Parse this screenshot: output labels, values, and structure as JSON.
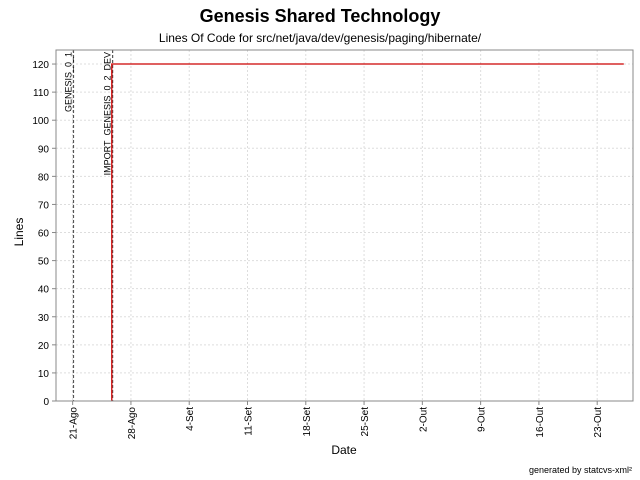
{
  "chart_data": {
    "type": "line",
    "title": "Genesis Shared Technology",
    "subtitle": "Lines Of Code for src/net/java/dev/genesis/paging/hibernate/",
    "xlabel": "Date",
    "ylabel": "Lines",
    "ylim": [
      0,
      125
    ],
    "yticks": [
      0,
      10,
      20,
      30,
      40,
      50,
      60,
      70,
      80,
      90,
      100,
      110,
      120
    ],
    "xlim_days": [
      -2.0,
      67.3
    ],
    "xticks": [
      {
        "label": "21-Ago",
        "day": 0
      },
      {
        "label": "28-Ago",
        "day": 7
      },
      {
        "label": "4-Set",
        "day": 14
      },
      {
        "label": "11-Set",
        "day": 21
      },
      {
        "label": "18-Set",
        "day": 28
      },
      {
        "label": "25-Set",
        "day": 35
      },
      {
        "label": "2-Out",
        "day": 42
      },
      {
        "label": "9-Out",
        "day": 49
      },
      {
        "label": "16-Out",
        "day": 56
      },
      {
        "label": "23-Out",
        "day": 63
      }
    ],
    "grid": true,
    "series": [
      {
        "color": "#cc0000",
        "points": [
          {
            "day": 4.7,
            "value": 0
          },
          {
            "day": 4.7,
            "value": 120
          },
          {
            "day": 66.2,
            "value": 120
          }
        ]
      }
    ],
    "markers": [
      {
        "label": "GENESIS_0_1",
        "day": 0.1
      },
      {
        "label": "IMPORT_GENESIS_0_2_DEV",
        "day": 4.8
      }
    ]
  },
  "footer": "generated by statcvs-xml²"
}
